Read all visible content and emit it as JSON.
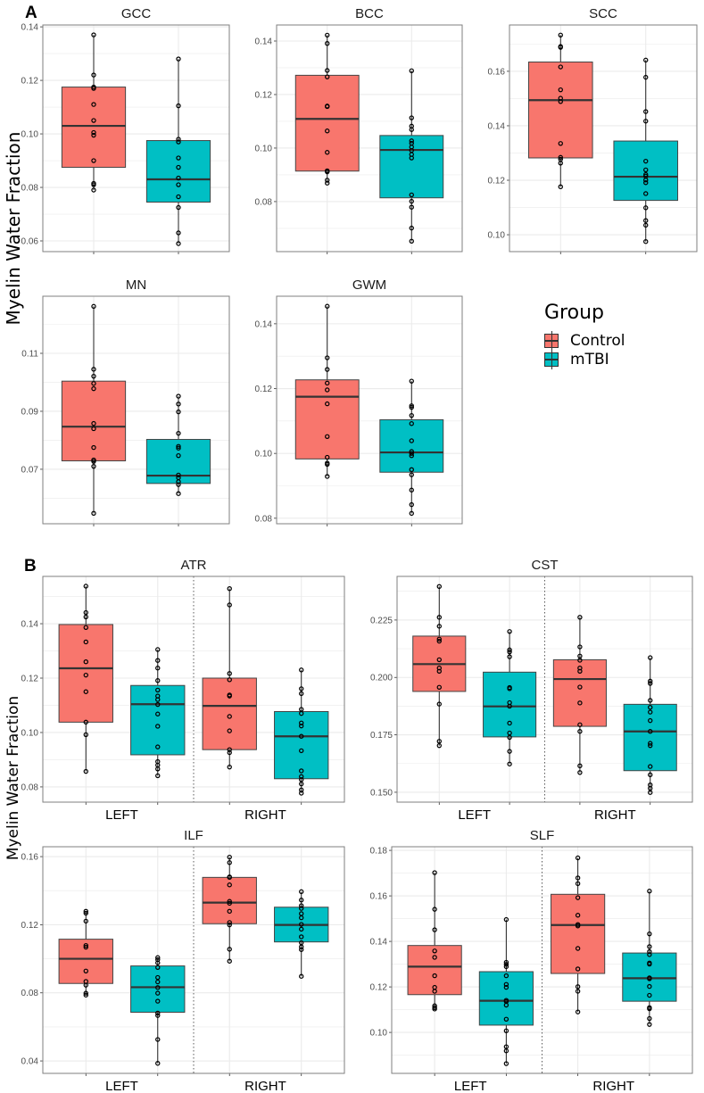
{
  "figure": {
    "panel_a_label": "A",
    "panel_b_label": "B",
    "y_axis_label": "Myelin Water Fraction",
    "legend": {
      "title": "Group",
      "items": [
        {
          "label": "Control",
          "color": "#F8766D"
        },
        {
          "label": "mTBI",
          "color": "#00BFC4"
        }
      ]
    }
  },
  "chart_data": [
    {
      "type": "box",
      "panel": "A",
      "title": "GCC",
      "ylim": [
        0.056,
        0.1407
      ],
      "yticks": [
        "0.06",
        "0.08",
        "0.10",
        "0.12",
        "0.14"
      ],
      "categories": [],
      "groups": [
        {
          "group": "Control",
          "stats": [
            0.079,
            0.0875,
            0.103,
            0.1175,
            0.137
          ],
          "points": [
            0.137,
            0.122,
            0.1175,
            0.117,
            0.111,
            0.105,
            0.1005,
            0.0995,
            0.09,
            0.0815,
            0.081,
            0.079
          ]
        },
        {
          "group": "mTBI",
          "stats": [
            0.059,
            0.0745,
            0.083,
            0.0975,
            0.128
          ],
          "points": [
            0.128,
            0.1105,
            0.098,
            0.097,
            0.091,
            0.0875,
            0.0835,
            0.081,
            0.0765,
            0.0725,
            0.063,
            0.059
          ]
        }
      ]
    },
    {
      "type": "box",
      "panel": "A",
      "title": "BCC",
      "ylim": [
        0.0613,
        0.146
      ],
      "yticks": [
        "0.08",
        "0.10",
        "0.12",
        "0.14"
      ],
      "categories": [],
      "groups": [
        {
          "group": "Control",
          "stats": [
            0.0869,
            0.0914,
            0.1109,
            0.1272,
            0.1422
          ],
          "points": [
            0.1422,
            0.1391,
            0.129,
            0.1266,
            0.1157,
            0.1155,
            0.1064,
            0.0984,
            0.0915,
            0.0911,
            0.088,
            0.0869
          ]
        },
        {
          "group": "mTBI",
          "stats": [
            0.0652,
            0.0814,
            0.0993,
            0.1047,
            0.1289
          ],
          "points": [
            0.1289,
            0.1113,
            0.1082,
            0.1069,
            0.1027,
            0.1018,
            0.1004,
            0.0991,
            0.0976,
            0.0963,
            0.0825,
            0.0801,
            0.0779,
            0.0701,
            0.0652
          ]
        }
      ]
    },
    {
      "type": "box",
      "panel": "A",
      "title": "SCC",
      "ylim": [
        0.0938,
        0.177
      ],
      "yticks": [
        "0.10",
        "0.12",
        "0.14",
        "0.16"
      ],
      "categories": [],
      "groups": [
        {
          "group": "Control",
          "stats": [
            0.1176,
            0.1282,
            0.1494,
            0.1634,
            0.1733
          ],
          "points": [
            0.1733,
            0.1691,
            0.1688,
            0.1616,
            0.1532,
            0.1501,
            0.1489,
            0.1335,
            0.1284,
            0.1277,
            0.1263,
            0.1176
          ]
        },
        {
          "group": "mTBI",
          "stats": [
            0.0975,
            0.1126,
            0.1213,
            0.1344,
            0.1641
          ],
          "points": [
            0.1641,
            0.1578,
            0.1452,
            0.1417,
            0.127,
            0.1238,
            0.1221,
            0.1215,
            0.1201,
            0.1191,
            0.1151,
            0.1099,
            0.1052,
            0.1035,
            0.0975
          ]
        }
      ]
    },
    {
      "type": "box",
      "panel": "A",
      "title": "MN",
      "ylim": [
        0.0512,
        0.1297
      ],
      "yticks": [
        "0.07",
        "0.09",
        "0.11"
      ],
      "categories": [],
      "groups": [
        {
          "group": "Control",
          "stats": [
            0.0548,
            0.0729,
            0.0847,
            0.1004,
            0.1262
          ],
          "points": [
            0.1262,
            0.1045,
            0.1021,
            0.0996,
            0.0978,
            0.0858,
            0.084,
            0.0775,
            0.0732,
            0.0727,
            0.071,
            0.0548
          ]
        },
        {
          "group": "mTBI",
          "stats": [
            0.0616,
            0.0651,
            0.0678,
            0.0803,
            0.0952
          ],
          "points": [
            0.0952,
            0.0925,
            0.0898,
            0.0824,
            0.0779,
            0.0773,
            0.0747,
            0.068,
            0.0671,
            0.0657,
            0.0647,
            0.0616
          ]
        }
      ]
    },
    {
      "type": "box",
      "panel": "A",
      "title": "GWM",
      "ylim": [
        0.0783,
        0.1485
      ],
      "yticks": [
        "0.08",
        "0.10",
        "0.12",
        "0.14"
      ],
      "categories": [],
      "groups": [
        {
          "group": "Control",
          "stats": [
            0.0929,
            0.0983,
            0.1175,
            0.1227,
            0.1454
          ],
          "points": [
            0.1454,
            0.1295,
            0.1259,
            0.1217,
            0.1196,
            0.1153,
            0.1052,
            0.0988,
            0.097,
            0.0966,
            0.0929
          ]
        },
        {
          "group": "mTBI",
          "stats": [
            0.0815,
            0.0942,
            0.1003,
            0.1104,
            0.1223
          ],
          "points": [
            0.1223,
            0.1147,
            0.1142,
            0.1117,
            0.1092,
            0.1039,
            0.1006,
            0.1,
            0.0993,
            0.095,
            0.0934,
            0.0887,
            0.0842,
            0.0815
          ]
        }
      ]
    },
    {
      "type": "box",
      "panel": "B",
      "title": "ATR",
      "ylim": [
        0.0744,
        0.1574
      ],
      "yticks": [
        "0.08",
        "0.10",
        "0.12",
        "0.14"
      ],
      "categories": [
        "LEFT",
        "RIGHT"
      ],
      "groups": [
        {
          "side": "LEFT",
          "group": "Control",
          "stats": [
            0.0857,
            0.1038,
            0.1236,
            0.1397,
            0.1538
          ],
          "points": [
            0.1538,
            0.1441,
            0.1425,
            0.1386,
            0.1333,
            0.126,
            0.1211,
            0.115,
            0.1038,
            0.0992,
            0.0857
          ]
        },
        {
          "side": "LEFT",
          "group": "mTBI",
          "stats": [
            0.0841,
            0.0918,
            0.1104,
            0.1173,
            0.1305
          ],
          "points": [
            0.1305,
            0.1265,
            0.1237,
            0.1191,
            0.1156,
            0.1134,
            0.1121,
            0.1103,
            0.1068,
            0.1023,
            0.0947,
            0.0893,
            0.088,
            0.0866,
            0.0841
          ]
        },
        {
          "side": "RIGHT",
          "group": "Control",
          "stats": [
            0.0873,
            0.0937,
            0.1098,
            0.12,
            0.1529
          ],
          "points": [
            0.1529,
            0.1469,
            0.1217,
            0.1194,
            0.1138,
            0.1134,
            0.1059,
            0.1006,
            0.0937,
            0.0926,
            0.0873
          ]
        },
        {
          "side": "RIGHT",
          "group": "mTBI",
          "stats": [
            0.0777,
            0.083,
            0.0986,
            0.1077,
            0.123
          ],
          "points": [
            0.123,
            0.1161,
            0.1143,
            0.1085,
            0.107,
            0.1035,
            0.1024,
            0.0986,
            0.0933,
            0.0859,
            0.0838,
            0.0827,
            0.0811,
            0.0789,
            0.0777
          ]
        }
      ]
    },
    {
      "type": "box",
      "panel": "B",
      "title": "CST",
      "ylim": [
        0.1457,
        0.244
      ],
      "yticks": [
        "0.150",
        "0.175",
        "0.200",
        "0.225"
      ],
      "categories": [
        "LEFT",
        "RIGHT"
      ],
      "groups": [
        {
          "side": "LEFT",
          "group": "Control",
          "stats": [
            0.1703,
            0.1939,
            0.2058,
            0.218,
            0.2396
          ],
          "points": [
            0.2396,
            0.2262,
            0.2223,
            0.2167,
            0.2158,
            0.2077,
            0.2041,
            0.2027,
            0.1957,
            0.1884,
            0.1722,
            0.1703
          ]
        },
        {
          "side": "LEFT",
          "group": "mTBI",
          "stats": [
            0.1623,
            0.1741,
            0.1874,
            0.2023,
            0.22
          ],
          "points": [
            0.22,
            0.212,
            0.2111,
            0.209,
            0.1956,
            0.1951,
            0.189,
            0.1875,
            0.1801,
            0.1758,
            0.1739,
            0.1678,
            0.1623
          ]
        },
        {
          "side": "RIGHT",
          "group": "Control",
          "stats": [
            0.1586,
            0.1787,
            0.1993,
            0.2077,
            0.2262
          ],
          "points": [
            0.2262,
            0.2133,
            0.2093,
            0.2075,
            0.2041,
            0.2027,
            0.1958,
            0.1889,
            0.1794,
            0.1765,
            0.1615,
            0.1586
          ]
        },
        {
          "side": "RIGHT",
          "group": "mTBI",
          "stats": [
            0.1499,
            0.1594,
            0.1765,
            0.1883,
            0.2086
          ],
          "points": [
            0.2086,
            0.1984,
            0.1974,
            0.19,
            0.187,
            0.1849,
            0.1812,
            0.1765,
            0.1713,
            0.1703,
            0.1612,
            0.1576,
            0.1532,
            0.1517,
            0.1499
          ]
        }
      ]
    },
    {
      "type": "box",
      "panel": "B",
      "title": "ILF",
      "ylim": [
        0.0327,
        0.1658
      ],
      "yticks": [
        "0.04",
        "0.08",
        "0.12",
        "0.16"
      ],
      "categories": [
        "LEFT",
        "RIGHT"
      ],
      "groups": [
        {
          "side": "LEFT",
          "group": "Control",
          "stats": [
            0.0787,
            0.0855,
            0.1,
            0.1115,
            0.1279
          ],
          "points": [
            0.1279,
            0.1268,
            0.1221,
            0.1078,
            0.1068,
            0.0928,
            0.0867,
            0.0845,
            0.0798,
            0.0787
          ]
        },
        {
          "side": "LEFT",
          "group": "mTBI",
          "stats": [
            0.0386,
            0.0686,
            0.0833,
            0.0958,
            0.1007
          ],
          "points": [
            0.1007,
            0.0995,
            0.0976,
            0.0949,
            0.089,
            0.0864,
            0.0831,
            0.0798,
            0.0751,
            0.0681,
            0.0667,
            0.0526,
            0.0386
          ]
        },
        {
          "side": "RIGHT",
          "group": "Control",
          "stats": [
            0.0986,
            0.1206,
            0.133,
            0.1478,
            0.1597
          ],
          "points": [
            0.1597,
            0.1565,
            0.1481,
            0.1478,
            0.1434,
            0.1337,
            0.1326,
            0.1279,
            0.1213,
            0.1199,
            0.1056,
            0.0986
          ]
        },
        {
          "side": "RIGHT",
          "group": "mTBI",
          "stats": [
            0.0897,
            0.1099,
            0.1199,
            0.1303,
            0.1394
          ],
          "points": [
            0.1394,
            0.1345,
            0.1312,
            0.1296,
            0.1265,
            0.1241,
            0.1202,
            0.1174,
            0.1129,
            0.1094,
            0.107,
            0.1054,
            0.0897
          ]
        }
      ]
    },
    {
      "type": "box",
      "panel": "B",
      "title": "SLF",
      "ylim": [
        0.082,
        0.1816
      ],
      "yticks": [
        "0.10",
        "0.12",
        "0.14",
        "0.16",
        "0.18"
      ],
      "categories": [
        "LEFT",
        "RIGHT"
      ],
      "groups": [
        {
          "side": "LEFT",
          "group": "Control",
          "stats": [
            0.1103,
            0.1166,
            0.1289,
            0.1382,
            0.1702
          ],
          "points": [
            0.1702,
            0.1541,
            0.1451,
            0.1358,
            0.133,
            0.1249,
            0.1198,
            0.1181,
            0.1117,
            0.1109,
            0.1103
          ]
        },
        {
          "side": "LEFT",
          "group": "mTBI",
          "stats": [
            0.0863,
            0.1032,
            0.1139,
            0.1267,
            0.1496
          ],
          "points": [
            0.1496,
            0.1308,
            0.1299,
            0.1289,
            0.1249,
            0.1211,
            0.1198,
            0.1141,
            0.1136,
            0.112,
            0.1058,
            0.1007,
            0.0937,
            0.0919,
            0.0863
          ]
        },
        {
          "side": "RIGHT",
          "group": "Control",
          "stats": [
            0.109,
            0.1259,
            0.1472,
            0.1607,
            0.1767
          ],
          "points": [
            0.1767,
            0.1679,
            0.1654,
            0.1592,
            0.1515,
            0.1474,
            0.1468,
            0.1369,
            0.1279,
            0.1201,
            0.1181,
            0.109
          ]
        },
        {
          "side": "RIGHT",
          "group": "mTBI",
          "stats": [
            0.1035,
            0.1137,
            0.1238,
            0.1349,
            0.1621
          ],
          "points": [
            0.1621,
            0.1433,
            0.1377,
            0.1355,
            0.1342,
            0.1305,
            0.13,
            0.124,
            0.1236,
            0.1202,
            0.1163,
            0.1109,
            0.1104,
            0.1061,
            0.1035
          ]
        }
      ]
    }
  ]
}
